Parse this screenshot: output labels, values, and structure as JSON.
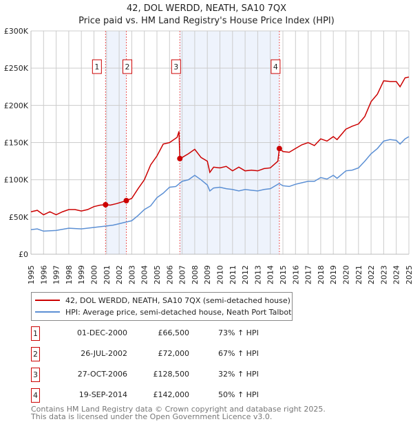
{
  "title": "42, DOL WERDD, NEATH, SA10 7QX",
  "subtitle": "Price paid vs. HM Land Registry's House Price Index (HPI)",
  "chart_data": {
    "type": "line",
    "title": "42, DOL WERDD, NEATH, SA10 7QX — Price paid vs. HM Land Registry's House Price Index (HPI)",
    "xlim": [
      1995,
      2025
    ],
    "ylim": [
      0,
      300000
    ],
    "yticks": [
      0,
      50000,
      100000,
      150000,
      200000,
      250000,
      300000
    ],
    "ytick_labels": [
      "£0",
      "£50K",
      "£100K",
      "£150K",
      "£200K",
      "£250K",
      "£300K"
    ],
    "xticks": [
      "1995",
      "1996",
      "1997",
      "1998",
      "1999",
      "2000",
      "2001",
      "2002",
      "2003",
      "2004",
      "2005",
      "2006",
      "2007",
      "2008",
      "2009",
      "2010",
      "2011",
      "2012",
      "2013",
      "2014",
      "2015",
      "2016",
      "2017",
      "2018",
      "2019",
      "2020",
      "2021",
      "2022",
      "2023",
      "2024",
      "2025"
    ],
    "grid": true,
    "legend_placement": "below",
    "series": [
      {
        "name": "42, DOL WERDD, NEATH, SA10 7QX (semi-detached house)",
        "color": "#cc0000",
        "x": [
          1995,
          1995.5,
          1996,
          1996.5,
          1997,
          1997.5,
          1998,
          1998.5,
          1999,
          1999.5,
          2000,
          2000.5,
          2000.92,
          2001.3,
          2001.8,
          2002.57,
          2003,
          2003.5,
          2004,
          2004.5,
          2005,
          2005.5,
          2006,
          2006.6,
          2006.75,
          2006.82,
          2007,
          2007.5,
          2008,
          2008.5,
          2009,
          2009.2,
          2009.5,
          2010,
          2010.5,
          2011,
          2011.5,
          2012,
          2012.5,
          2013,
          2013.5,
          2014,
          2014.6,
          2014.72,
          2015,
          2015.5,
          2016,
          2016.5,
          2017,
          2017.5,
          2018,
          2018.5,
          2019,
          2019.3,
          2020,
          2020.5,
          2021,
          2021.5,
          2022,
          2022.5,
          2023,
          2023.5,
          2024,
          2024.3,
          2024.7,
          2025
        ],
        "y": [
          57000,
          59000,
          53000,
          57000,
          53000,
          57000,
          60000,
          60000,
          58000,
          60000,
          64000,
          66000,
          66500,
          66000,
          68000,
          72000,
          75000,
          88000,
          100000,
          120000,
          132000,
          148000,
          150000,
          157000,
          165000,
          128500,
          130000,
          135000,
          141000,
          130000,
          125000,
          110000,
          117000,
          116000,
          118000,
          112000,
          117000,
          112000,
          113000,
          112000,
          115000,
          116000,
          125000,
          142000,
          138000,
          137000,
          142000,
          147000,
          150000,
          146000,
          155000,
          152000,
          158000,
          154000,
          168000,
          172000,
          175000,
          185000,
          205000,
          215000,
          233000,
          232000,
          232000,
          225000,
          237000,
          238000
        ]
      },
      {
        "name": "HPI: Average price, semi-detached house, Neath Port Talbot",
        "color": "#5b8fd4",
        "x": [
          1995,
          1995.5,
          1996,
          1997,
          1998,
          1999,
          2000,
          2001,
          2001.5,
          2002,
          2002.5,
          2003,
          2003.5,
          2004,
          2004.5,
          2005,
          2005.5,
          2006,
          2006.5,
          2007,
          2007.5,
          2008,
          2008.5,
          2009,
          2009.2,
          2009.5,
          2010,
          2010.5,
          2011,
          2011.5,
          2012,
          2012.5,
          2013,
          2013.5,
          2014,
          2014.7,
          2015,
          2015.5,
          2016,
          2016.5,
          2017,
          2017.5,
          2018,
          2018.5,
          2019,
          2019.3,
          2020,
          2020.5,
          2021,
          2021.5,
          2022,
          2022.5,
          2023,
          2023.5,
          2024,
          2024.3,
          2024.7,
          2025
        ],
        "y": [
          33000,
          34000,
          31000,
          32000,
          35000,
          34000,
          36000,
          38000,
          39000,
          41000,
          43000,
          45000,
          52000,
          60000,
          65000,
          76000,
          82000,
          90000,
          91000,
          98000,
          100000,
          106000,
          100000,
          93000,
          85000,
          89000,
          90000,
          88000,
          87000,
          85000,
          87000,
          86000,
          85000,
          87000,
          88000,
          95000,
          92000,
          91000,
          94000,
          96000,
          98000,
          98000,
          103000,
          101000,
          106000,
          102000,
          112000,
          113000,
          116000,
          125000,
          135000,
          142000,
          152000,
          154000,
          153000,
          148000,
          155000,
          158000
        ]
      }
    ],
    "sales": [
      {
        "label": "1",
        "x": 2000.92,
        "y": 66500,
        "date": "01-DEC-2000",
        "price": "£66,500",
        "hpi": "73% ↑ HPI"
      },
      {
        "label": "2",
        "x": 2002.57,
        "y": 72000,
        "date": "26-JUL-2002",
        "price": "£72,000",
        "hpi": "67% ↑ HPI"
      },
      {
        "label": "3",
        "x": 2006.82,
        "y": 128500,
        "date": "27-OCT-2006",
        "price": "£128,500",
        "hpi": "32% ↑ HPI"
      },
      {
        "label": "4",
        "x": 2014.72,
        "y": 142000,
        "date": "19-SEP-2014",
        "price": "£142,000",
        "hpi": "50% ↑ HPI"
      }
    ],
    "shaded_ranges": [
      [
        2000.92,
        2002.57
      ],
      [
        2006.82,
        2014.72
      ]
    ]
  },
  "footer": [
    "Contains HM Land Registry data © Crown copyright and database right 2025.",
    "This data is licensed under the Open Government Licence v3.0."
  ]
}
